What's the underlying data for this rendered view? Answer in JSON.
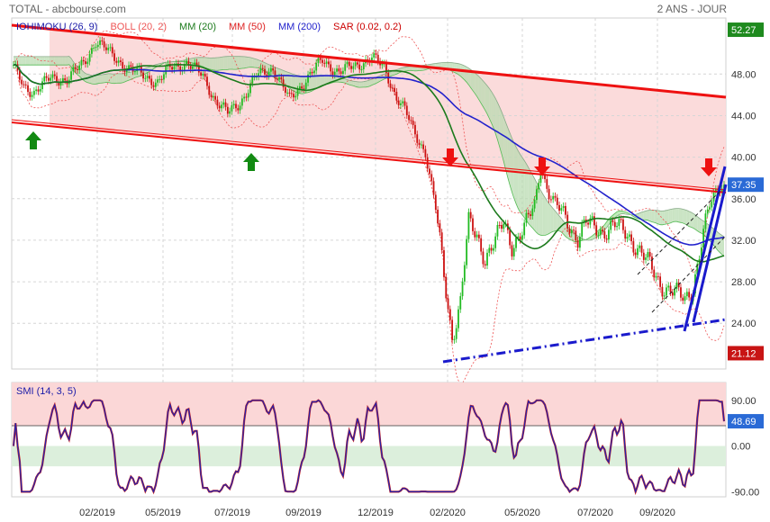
{
  "header": {
    "title": "TOTAL - abcbourse.com",
    "period": "2 ANS - JOUR"
  },
  "legend": [
    {
      "text": "IOHIMOKU (26, 9)",
      "color": "#1a1aa8"
    },
    {
      "text": "BOLL (20, 2)",
      "color": "#ee5555"
    },
    {
      "text": "MM (20)",
      "color": "#1c7a1c"
    },
    {
      "text": "MM (50)",
      "color": "#dd2222"
    },
    {
      "text": "MM (200)",
      "color": "#2222cc"
    },
    {
      "text": "SAR (0.02, 0.2)",
      "color": "#cc0000"
    }
  ],
  "chart_data": [
    {
      "type": "line",
      "panel": "price",
      "x_ticks": [
        "02/2019",
        "05/2019",
        "07/2019",
        "09/2019",
        "12/2019",
        "02/2020",
        "05/2020",
        "07/2020",
        "09/2020"
      ],
      "y_ticks": [
        24.0,
        28.0,
        32.0,
        36.0,
        40.0,
        44.0,
        48.0
      ],
      "ylim": [
        19.6,
        53.4
      ],
      "price_tags": [
        {
          "label": "52.27",
          "value": 52.27,
          "color": "#1e8a1e"
        },
        {
          "label": "37.35",
          "value": 37.35,
          "color": "#2a6ad6"
        },
        {
          "label": "21.12",
          "value": 21.12,
          "color": "#c81414"
        }
      ],
      "series": [
        {
          "name": "IOHIMOKU (26, 9)",
          "color": "#1a1aa8"
        },
        {
          "name": "BOLL (20, 2)",
          "color": "#ee5555"
        },
        {
          "name": "MM (20)",
          "color": "#1c7a1c"
        },
        {
          "name": "MM (50)",
          "color": "#dd2222"
        },
        {
          "name": "MM (200)",
          "color": "#2222cc"
        },
        {
          "name": "SAR (0.02, 0.2)",
          "color": "#cc0000"
        }
      ],
      "close_anchors": [
        [
          0,
          48.6
        ],
        [
          5,
          46.8
        ],
        [
          10,
          46.3
        ],
        [
          18,
          47.6
        ],
        [
          26,
          47.5
        ],
        [
          34,
          49.0
        ],
        [
          40,
          51.2
        ],
        [
          48,
          49.8
        ],
        [
          56,
          48.5
        ],
        [
          62,
          48.0
        ],
        [
          70,
          47.2
        ],
        [
          76,
          48.6
        ],
        [
          84,
          49.1
        ],
        [
          92,
          47.8
        ],
        [
          98,
          45.5
        ],
        [
          104,
          44.2
        ],
        [
          110,
          45.3
        ],
        [
          118,
          47.8
        ],
        [
          126,
          48.6
        ],
        [
          134,
          45.5
        ],
        [
          142,
          47.5
        ],
        [
          150,
          49.3
        ],
        [
          158,
          48.2
        ],
        [
          166,
          48.8
        ],
        [
          174,
          49.6
        ],
        [
          180,
          48.6
        ],
        [
          186,
          45.8
        ],
        [
          190,
          44.5
        ],
        [
          194,
          42.6
        ],
        [
          200,
          40.5
        ],
        [
          205,
          35.0
        ],
        [
          209,
          28.6
        ],
        [
          213,
          22.7
        ],
        [
          217,
          26.0
        ],
        [
          221,
          33.6
        ],
        [
          225,
          32.5
        ],
        [
          229,
          30.3
        ],
        [
          234,
          31.8
        ],
        [
          238,
          33.8
        ],
        [
          242,
          31.6
        ],
        [
          248,
          33.0
        ],
        [
          253,
          35.5
        ],
        [
          256,
          39.2
        ],
        [
          260,
          36.4
        ],
        [
          264,
          35.2
        ],
        [
          268,
          34.2
        ],
        [
          274,
          32.2
        ],
        [
          278,
          33.6
        ],
        [
          286,
          32.9
        ],
        [
          292,
          33.4
        ],
        [
          298,
          32.6
        ],
        [
          303,
          31.3
        ],
        [
          308,
          29.8
        ],
        [
          314,
          27.8
        ],
        [
          320,
          27.1
        ],
        [
          326,
          26.2
        ],
        [
          330,
          27.6
        ],
        [
          334,
          31.8
        ],
        [
          338,
          35.2
        ],
        [
          342,
          37.1
        ],
        [
          345,
          37.35
        ]
      ]
    },
    {
      "type": "line",
      "panel": "indicator",
      "title": "SMI (14, 3, 5)",
      "y_ticks": [
        90.0,
        0.0,
        -90.0
      ],
      "ylim": [
        -100,
        125
      ],
      "zones": {
        "overbought": 40,
        "oversold": -40
      },
      "value_tag": {
        "label": "48.69",
        "value": 48.69,
        "color": "#2a6ad6"
      }
    }
  ]
}
